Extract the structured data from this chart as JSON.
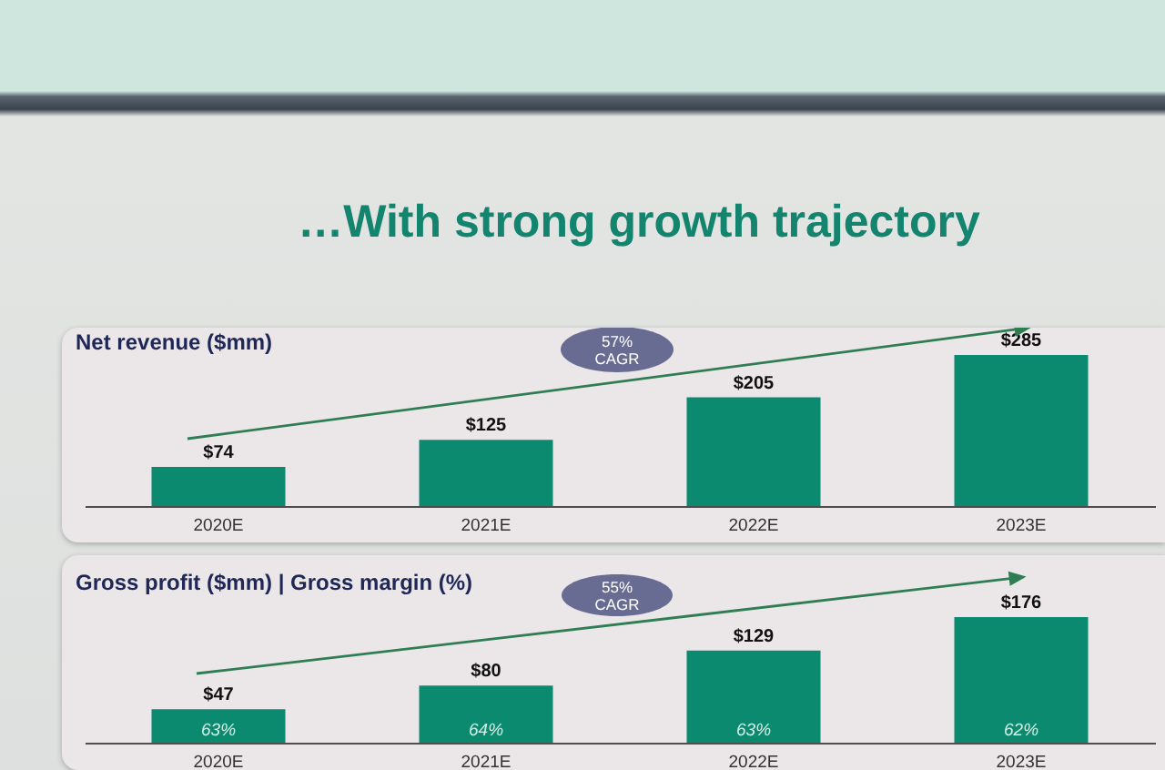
{
  "chart_data": [
    {
      "type": "other",
      "title": "…With strong growth trajectory"
    },
    {
      "type": "bar",
      "title": "Net revenue ($mm)",
      "categories": [
        "2020E",
        "2021E",
        "2022E",
        "2023E"
      ],
      "values": [
        74,
        125,
        205,
        285
      ],
      "value_labels": [
        "$74",
        "$125",
        "$205",
        "$285"
      ],
      "color": "#0b8a6f",
      "tick_labels": "x",
      "annotations": [
        "57% CAGR"
      ]
    },
    {
      "type": "bar",
      "title": "Gross profit ($mm) | Gross margin (%)",
      "categories": [
        "2020E",
        "2021E",
        "2022E",
        "2023E"
      ],
      "values": [
        47,
        80,
        129,
        176
      ],
      "value_labels": [
        "$47",
        "$80",
        "$129",
        "$176"
      ],
      "color": "#0b8a6f",
      "tick_labels": "x",
      "annotations": [
        "55% CAGR",
        "63%",
        "64%",
        "63%",
        "62%"
      ]
    }
  ]
}
